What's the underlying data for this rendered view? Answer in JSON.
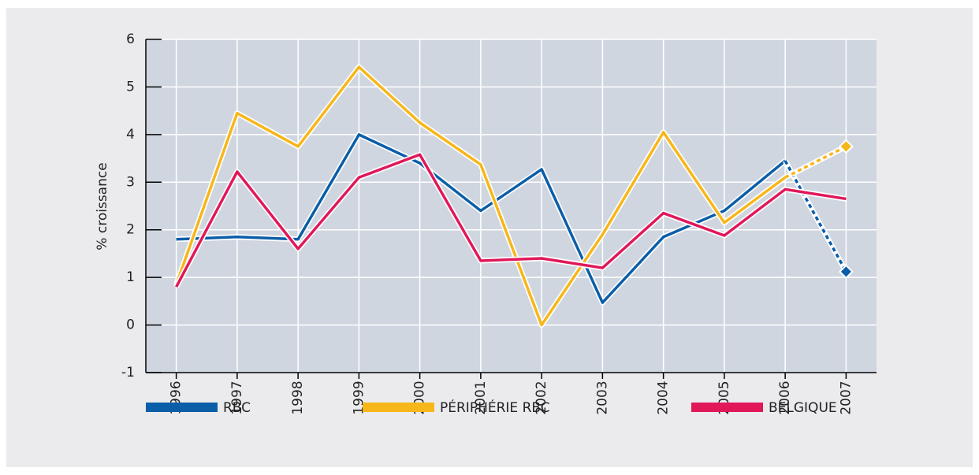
{
  "chart_data": {
    "type": "line",
    "y_label": "% croissance",
    "categories": [
      "1996",
      "1997",
      "1998",
      "1999",
      "2000",
      "2001",
      "2002",
      "2003",
      "2004",
      "2005",
      "2006",
      "2007"
    ],
    "series": [
      {
        "name": "RBC",
        "color": "#0a5ea8",
        "dashed_last": true,
        "end_marker": "diamond",
        "values": [
          1.8,
          1.85,
          1.8,
          4.0,
          3.4,
          2.4,
          3.27,
          0.47,
          1.85,
          2.4,
          3.45,
          1.12
        ]
      },
      {
        "name": "PÉRIPHÉRIE RBC",
        "color": "#f7b619",
        "dashed_last": true,
        "end_marker": "diamond",
        "values": [
          0.85,
          4.45,
          3.75,
          5.42,
          4.25,
          3.37,
          0.0,
          1.9,
          4.05,
          2.15,
          3.1,
          3.75
        ]
      },
      {
        "name": "BELGIQUE",
        "color": "#e0185a",
        "dashed_last": false,
        "values": [
          0.8,
          3.22,
          1.6,
          3.1,
          3.58,
          1.35,
          1.4,
          1.2,
          2.35,
          1.88,
          2.85,
          2.65
        ]
      }
    ],
    "ylim": [
      -1,
      6
    ],
    "yticks": [
      -1,
      0,
      1,
      2,
      3,
      4,
      5,
      6
    ],
    "grid": true
  }
}
